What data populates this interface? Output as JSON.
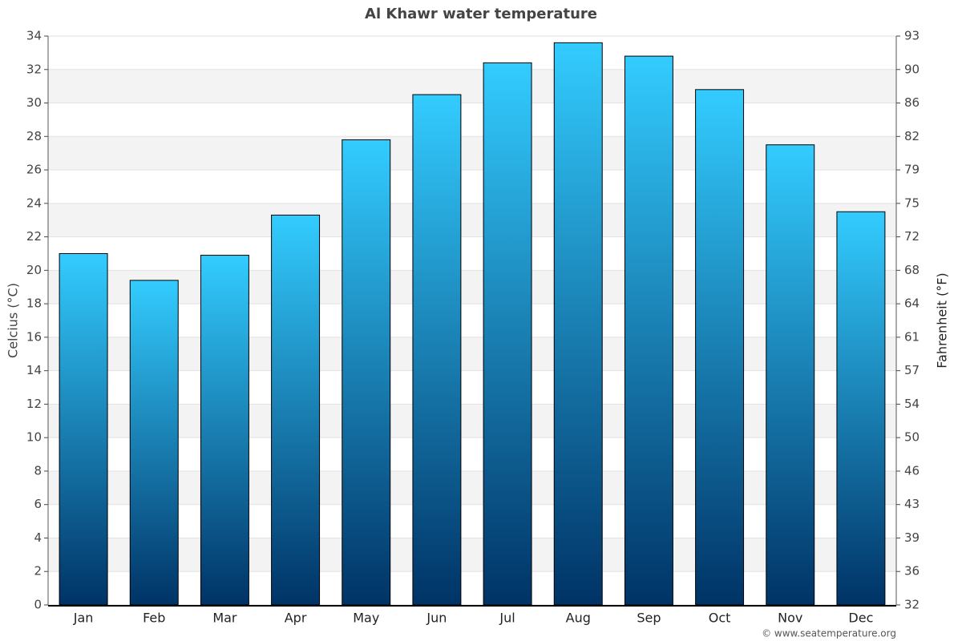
{
  "chart_data": {
    "type": "bar",
    "title": "Al Khawr water temperature",
    "ylabel": "Celcius (°C)",
    "y2label": "Fahrenheit (°F)",
    "categories": [
      "Jan",
      "Feb",
      "Mar",
      "Apr",
      "May",
      "Jun",
      "Jul",
      "Aug",
      "Sep",
      "Oct",
      "Nov",
      "Dec"
    ],
    "values": [
      21.0,
      19.4,
      20.9,
      23.3,
      27.8,
      30.5,
      32.4,
      33.6,
      32.8,
      30.8,
      27.5,
      23.5
    ],
    "color": [
      "#33ccff",
      "#003366"
    ],
    "ylim": [
      0,
      34
    ],
    "yticks": [
      0,
      2,
      4,
      6,
      8,
      10,
      12,
      14,
      16,
      18,
      20,
      22,
      24,
      26,
      28,
      30,
      32,
      34
    ],
    "y2lim": [
      32,
      93.2
    ],
    "y2ticks": [
      32,
      {
        "value": 35.6,
        "label": "36"
      },
      {
        "value": 39.2,
        "label": "39"
      },
      {
        "value": 42.8,
        "label": "43"
      },
      {
        "value": 46.4,
        "label": "46"
      },
      50,
      {
        "value": 53.6,
        "label": "54"
      },
      {
        "value": 57.2,
        "label": "57"
      },
      {
        "value": 60.8,
        "label": "61"
      },
      {
        "value": 64.4,
        "label": "64"
      },
      68,
      {
        "value": 71.6,
        "label": "72"
      },
      {
        "value": 75.2,
        "label": "75"
      },
      {
        "value": 78.8,
        "label": "79"
      },
      {
        "value": 82.4,
        "label": "82"
      },
      86,
      {
        "value": 89.6,
        "label": "90"
      },
      {
        "value": 93.2,
        "label": "93"
      }
    ],
    "grid": true,
    "credit": "© www.seatemperature.org"
  }
}
